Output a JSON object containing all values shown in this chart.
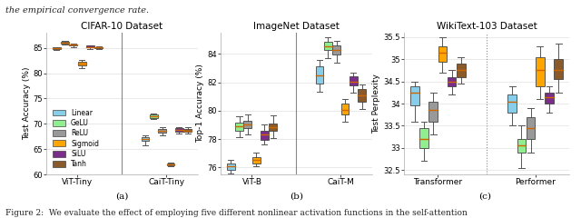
{
  "title_a": "CIFAR-10 Dataset",
  "title_b": "ImageNet Dataset",
  "title_c": "WikiText-103 Dataset",
  "ylabel_a": "Test Accuracy (%)",
  "ylabel_b": "Top-1 Accuracy (%)",
  "ylabel_c": "Test Perplexity",
  "label_a": "(a)",
  "label_b": "(b)",
  "label_c": "(c)",
  "colors": {
    "Linear": "#87CEEB",
    "GeLU": "#90EE90",
    "ReLU": "#999999",
    "Sigmoid": "#FFA500",
    "SiLU": "#7B2D8B",
    "Tanh": "#8B5A2B"
  },
  "legend_labels": [
    "Linear",
    "GeLU",
    "ReLU",
    "Sigmoid",
    "SiLU",
    "Tanh"
  ],
  "plot_a": {
    "groups": [
      "ViT-Tiny",
      "CaiT-Tiny"
    ],
    "ylim": [
      60,
      88
    ],
    "yticks": [
      60,
      65,
      70,
      75,
      80,
      85
    ],
    "boxes": {
      "ViT-Tiny": {
        "Linear": {
          "med": 84.9,
          "q1": 84.75,
          "q3": 85.05,
          "whislo": 84.6,
          "whishi": 85.15
        },
        "GeLU": {
          "med": 86.0,
          "q1": 85.85,
          "q3": 86.25,
          "whislo": 85.7,
          "whishi": 86.45
        },
        "ReLU": {
          "med": 85.6,
          "q1": 85.45,
          "q3": 85.75,
          "whislo": 85.2,
          "whishi": 85.9
        },
        "Sigmoid": {
          "med": 81.9,
          "q1": 81.5,
          "q3": 82.3,
          "whislo": 81.0,
          "whishi": 82.6
        },
        "SiLU": {
          "med": 85.2,
          "q1": 85.05,
          "q3": 85.4,
          "whislo": 84.85,
          "whishi": 85.55
        },
        "Tanh": {
          "med": 85.05,
          "q1": 84.9,
          "q3": 85.2,
          "whislo": 84.7,
          "whishi": 85.35
        }
      },
      "CaiT-Tiny": {
        "Linear": {
          "med": 67.0,
          "q1": 66.6,
          "q3": 67.4,
          "whislo": 65.8,
          "whishi": 67.8
        },
        "GeLU": {
          "med": 71.5,
          "q1": 71.2,
          "q3": 71.9,
          "whislo": 70.9,
          "whishi": 72.1
        },
        "ReLU": {
          "med": 68.6,
          "q1": 68.2,
          "q3": 69.0,
          "whislo": 67.7,
          "whishi": 69.4
        },
        "Sigmoid": {
          "med": 62.0,
          "q1": 61.85,
          "q3": 62.15,
          "whislo": 61.6,
          "whishi": 62.3
        },
        "SiLU": {
          "med": 68.8,
          "q1": 68.5,
          "q3": 69.1,
          "whislo": 68.1,
          "whishi": 69.4
        },
        "Tanh": {
          "med": 68.7,
          "q1": 68.4,
          "q3": 69.0,
          "whislo": 68.0,
          "whishi": 69.3
        }
      }
    }
  },
  "plot_b": {
    "groups": [
      "ViT-B",
      "CaiT-M"
    ],
    "ylim": [
      75.5,
      85.5
    ],
    "yticks": [
      76,
      78,
      80,
      82,
      84
    ],
    "boxes": {
      "ViT-B": {
        "Linear": {
          "med": 76.05,
          "q1": 75.85,
          "q3": 76.3,
          "whislo": 75.55,
          "whishi": 76.5
        },
        "GeLU": {
          "med": 78.9,
          "q1": 78.6,
          "q3": 79.15,
          "whislo": 78.1,
          "whishi": 79.6
        },
        "ReLU": {
          "med": 79.0,
          "q1": 78.75,
          "q3": 79.3,
          "whislo": 78.3,
          "whishi": 79.75
        },
        "Sigmoid": {
          "med": 76.5,
          "q1": 76.3,
          "q3": 76.75,
          "whislo": 76.05,
          "whishi": 77.05
        },
        "SiLU": {
          "med": 78.3,
          "q1": 77.95,
          "q3": 78.55,
          "whislo": 77.6,
          "whishi": 79.05
        },
        "Tanh": {
          "med": 78.85,
          "q1": 78.55,
          "q3": 79.1,
          "whislo": 78.05,
          "whishi": 79.65
        }
      },
      "CaiT-M": {
        "Linear": {
          "med": 82.5,
          "q1": 81.9,
          "q3": 83.1,
          "whislo": 81.35,
          "whishi": 83.6
        },
        "GeLU": {
          "med": 84.55,
          "q1": 84.3,
          "q3": 84.85,
          "whislo": 83.7,
          "whishi": 85.2
        },
        "ReLU": {
          "med": 84.3,
          "q1": 83.95,
          "q3": 84.6,
          "whislo": 83.4,
          "whishi": 84.95
        },
        "Sigmoid": {
          "med": 80.05,
          "q1": 79.7,
          "q3": 80.5,
          "whislo": 79.2,
          "whishi": 80.85
        },
        "SiLU": {
          "med": 82.05,
          "q1": 81.8,
          "q3": 82.4,
          "whislo": 81.3,
          "whishi": 82.7
        },
        "Tanh": {
          "med": 81.1,
          "q1": 80.65,
          "q3": 81.5,
          "whislo": 80.1,
          "whishi": 81.85
        }
      }
    }
  },
  "plot_c": {
    "groups": [
      "Transformer",
      "Performer"
    ],
    "ylim": [
      32.4,
      35.6
    ],
    "yticks": [
      32.5,
      33.0,
      33.5,
      34.0,
      34.5,
      35.0,
      35.5
    ],
    "boxes": {
      "Transformer": {
        "Linear": {
          "med": 34.25,
          "q1": 33.95,
          "q3": 34.4,
          "whislo": 33.6,
          "whishi": 34.5
        },
        "GeLU": {
          "med": 33.2,
          "q1": 33.0,
          "q3": 33.45,
          "whislo": 32.7,
          "whishi": 33.6
        },
        "ReLU": {
          "med": 33.85,
          "q1": 33.6,
          "q3": 34.05,
          "whislo": 33.3,
          "whishi": 34.25
        },
        "Sigmoid": {
          "med": 35.15,
          "q1": 34.95,
          "q3": 35.3,
          "whislo": 34.7,
          "whishi": 35.5
        },
        "SiLU": {
          "med": 34.5,
          "q1": 34.4,
          "q3": 34.6,
          "whislo": 34.2,
          "whishi": 34.75
        },
        "Tanh": {
          "med": 34.75,
          "q1": 34.6,
          "q3": 34.9,
          "whislo": 34.45,
          "whishi": 35.05
        }
      },
      "Performer": {
        "Linear": {
          "med": 34.05,
          "q1": 33.8,
          "q3": 34.2,
          "whislo": 33.5,
          "whishi": 34.4
        },
        "GeLU": {
          "med": 33.05,
          "q1": 32.9,
          "q3": 33.2,
          "whislo": 32.55,
          "whishi": 33.5
        },
        "ReLU": {
          "med": 33.45,
          "q1": 33.2,
          "q3": 33.7,
          "whislo": 32.9,
          "whishi": 33.9
        },
        "Sigmoid": {
          "med": 34.75,
          "q1": 34.4,
          "q3": 35.05,
          "whislo": 34.1,
          "whishi": 35.3
        },
        "SiLU": {
          "med": 34.15,
          "q1": 34.0,
          "q3": 34.25,
          "whislo": 33.8,
          "whishi": 34.4
        },
        "Tanh": {
          "med": 34.75,
          "q1": 34.55,
          "q3": 35.0,
          "whislo": 34.25,
          "whishi": 35.35
        }
      }
    }
  },
  "header_text": "the empirical convergence rate.",
  "figure_caption": "Figure 2:  We evaluate the effect of employing five different nonlinear activation functions in the self-attention",
  "bg_color": "#ffffff",
  "grid_color": "#e0e0e0",
  "spine_color": "#aaaaaa"
}
